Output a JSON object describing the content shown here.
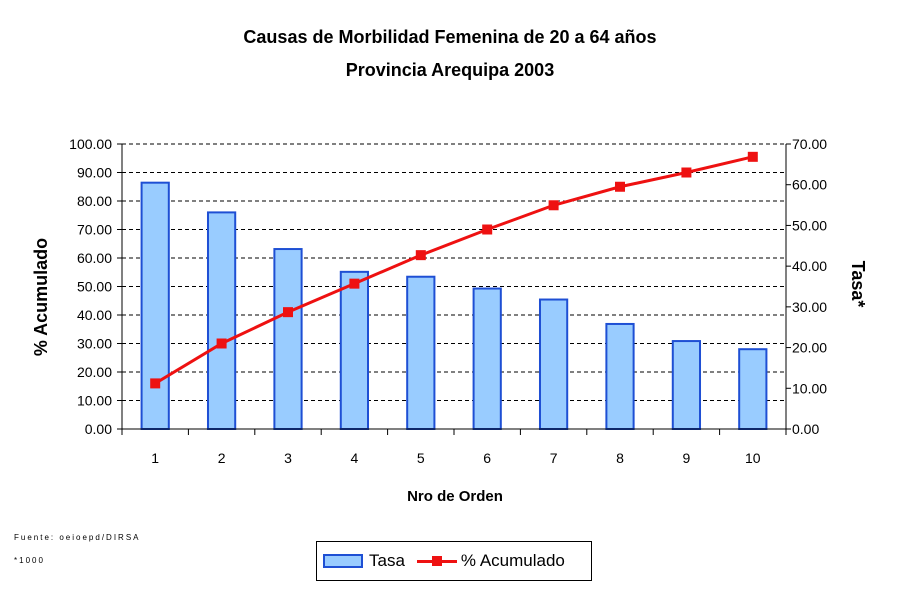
{
  "chart_data": {
    "type": "bar",
    "title": "Causas de Morbilidad Femenina de 20 a 64 años",
    "subtitle": "Provincia Arequipa 2003",
    "xlabel": "Nro de Orden",
    "ylabel_left": "% Acumulado",
    "ylabel_right": "Tasa*",
    "categories": [
      "1",
      "2",
      "3",
      "4",
      "5",
      "6",
      "7",
      "8",
      "9",
      "10"
    ],
    "series": [
      {
        "name": "Tasa",
        "type": "bar",
        "axis": "right",
        "values": [
          60.5,
          53.2,
          44.2,
          38.6,
          37.4,
          34.5,
          31.8,
          25.8,
          21.6,
          19.6
        ]
      },
      {
        "name": "% Acumulado",
        "type": "line",
        "axis": "left",
        "values": [
          16.0,
          30.0,
          41.0,
          51.0,
          61.0,
          70.0,
          78.5,
          85.0,
          90.0,
          95.5
        ]
      }
    ],
    "ylim_left": [
      0,
      100
    ],
    "ylim_right": [
      0,
      70
    ],
    "yticks_left": [
      "0.00",
      "10.00",
      "20.00",
      "30.00",
      "40.00",
      "50.00",
      "60.00",
      "70.00",
      "80.00",
      "90.00",
      "100.00"
    ],
    "yticks_right": [
      "0.00",
      "10.00",
      "20.00",
      "30.00",
      "40.00",
      "50.00",
      "60.00",
      "70.00"
    ],
    "grid": "dashed horizontal",
    "legend": "bottom-center",
    "colors": {
      "bar_fill": "#99ccff",
      "bar_stroke": "#1e4fd4",
      "line": "#ee1111"
    }
  },
  "notes": {
    "source": "Fuente: oeioepd/DIRSA",
    "unit": "*1000"
  },
  "legend": {
    "bar_label": "Tasa",
    "line_label": "% Acumulado"
  }
}
